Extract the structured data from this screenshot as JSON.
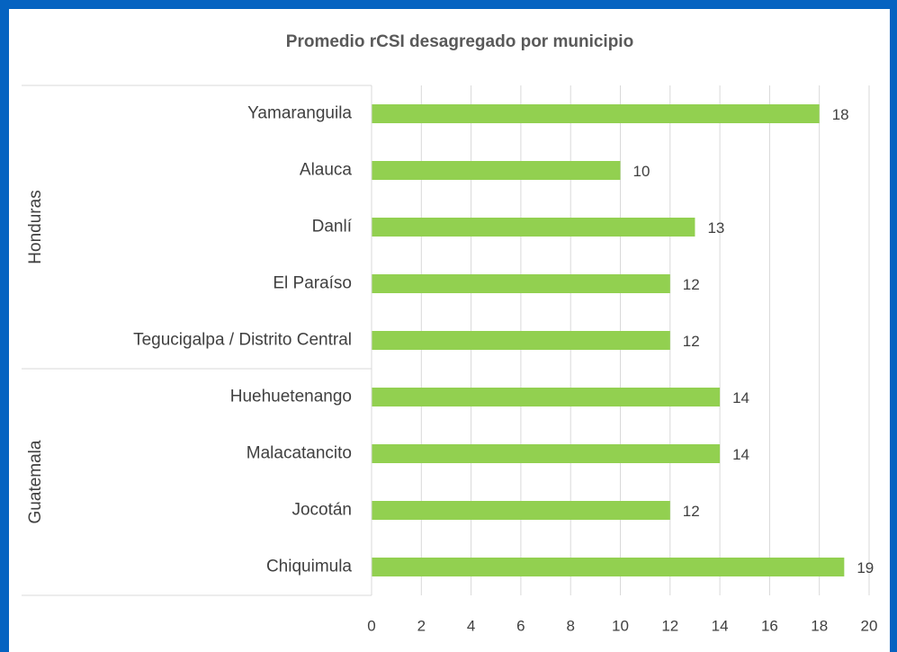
{
  "chart_data": {
    "type": "bar",
    "orientation": "horizontal",
    "title": "Promedio rCSI desagregado por municipio",
    "categories": [
      "Yamaranguila",
      "Alauca",
      "Danlí",
      "El Paraíso",
      "Tegucigalpa / Distrito Central",
      "Huehuetenango",
      "Malacatancito",
      "Jocotán",
      "Chiquimula"
    ],
    "groups": [
      {
        "name": "Honduras",
        "size": 5
      },
      {
        "name": "Guatemala",
        "size": 4
      }
    ],
    "values": [
      18,
      10,
      13,
      12,
      12,
      14,
      14,
      12,
      19
    ],
    "color": "#92d050",
    "xlim": [
      0,
      20
    ],
    "xticks": [
      0,
      2,
      4,
      6,
      8,
      10,
      12,
      14,
      16,
      18,
      20
    ],
    "grid": true
  }
}
